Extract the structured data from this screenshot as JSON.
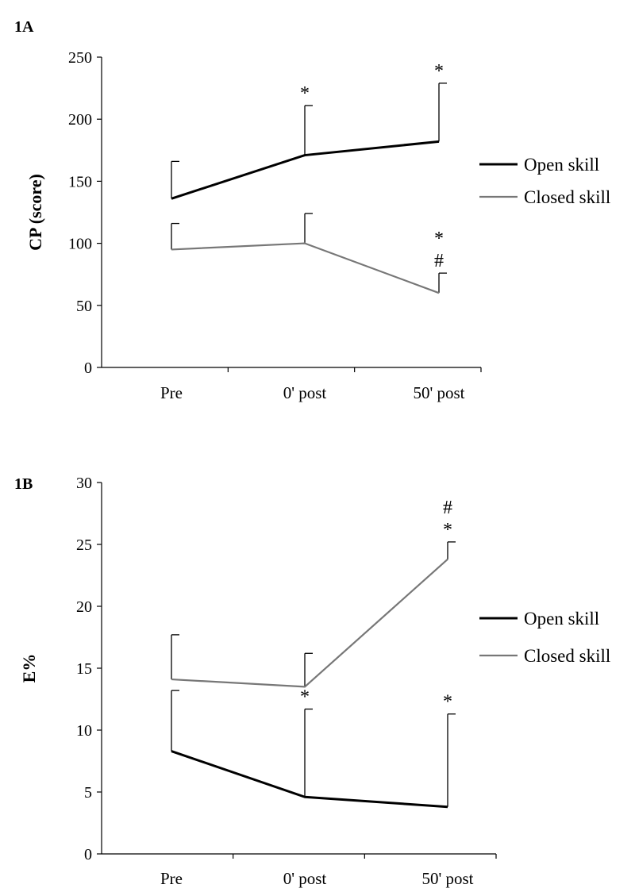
{
  "chart_data": [
    {
      "panel": "1A",
      "type": "line",
      "categories": [
        "Pre",
        "0' post",
        "50' post"
      ],
      "ylabel": "CP (score)",
      "xlabel": "",
      "ylim": [
        0,
        250
      ],
      "yticks": [
        0,
        50,
        100,
        150,
        200,
        250
      ],
      "grid": false,
      "legend_position": "right",
      "series": [
        {
          "name": "Open skill",
          "color": "#000000",
          "values": [
            136,
            171,
            182
          ],
          "error_upper": [
            30,
            40,
            47
          ],
          "markers": [
            "",
            "*",
            "*"
          ]
        },
        {
          "name": "Closed skill",
          "color": "#777777",
          "values": [
            95,
            100,
            60
          ],
          "error_upper": [
            21,
            24,
            16
          ],
          "markers": [
            "",
            "",
            "*\n#"
          ]
        }
      ]
    },
    {
      "panel": "1B",
      "type": "line",
      "categories": [
        "Pre",
        "0' post",
        "50' post"
      ],
      "ylabel": "E%",
      "xlabel": "",
      "ylim": [
        0,
        30
      ],
      "yticks": [
        0,
        5,
        10,
        15,
        20,
        25,
        30
      ],
      "grid": false,
      "legend_position": "right",
      "series": [
        {
          "name": "Open skill",
          "color": "#000000",
          "values": [
            8.3,
            4.6,
            3.8
          ],
          "error_upper": [
            4.9,
            7.1,
            7.5
          ],
          "markers": [
            "",
            "*",
            "*"
          ]
        },
        {
          "name": "Closed skill",
          "color": "#777777",
          "values": [
            14.1,
            13.5,
            23.8
          ],
          "error_upper": [
            3.6,
            2.7,
            1.4
          ],
          "markers": [
            "",
            "",
            "#\n*"
          ]
        }
      ]
    }
  ]
}
